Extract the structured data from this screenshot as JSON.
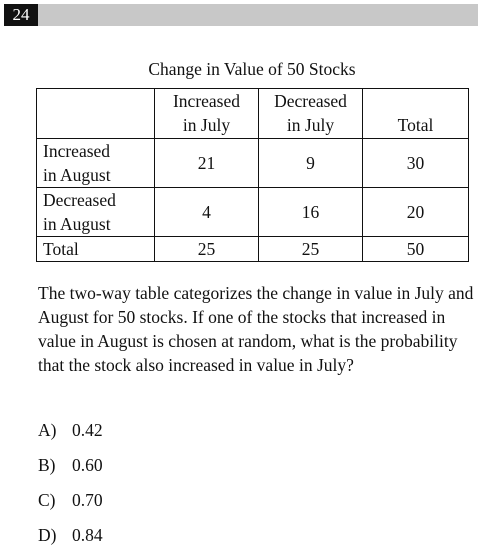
{
  "question": {
    "number": "24",
    "table_title": "Change in Value of 50 Stocks",
    "table": {
      "column_headers": [
        [
          "Increased",
          "in July"
        ],
        [
          "Decreased",
          "in July"
        ],
        [
          "",
          "Total"
        ]
      ],
      "rows": [
        {
          "label": [
            "Increased",
            "in August"
          ],
          "cells": [
            "21",
            "9",
            "30"
          ]
        },
        {
          "label": [
            "Decreased",
            "in August"
          ],
          "cells": [
            "4",
            "16",
            "20"
          ]
        },
        {
          "label": [
            "Total"
          ],
          "cells": [
            "25",
            "25",
            "50"
          ]
        }
      ]
    },
    "prompt": "The two-way table categorizes the change in value in July and August for 50 stocks. If one of the stocks that increased in value in August is chosen at random, what is the probability that the stock also increased in value in July?",
    "choices": [
      {
        "letter": "A)",
        "text": "0.42"
      },
      {
        "letter": "B)",
        "text": "0.60"
      },
      {
        "letter": "C)",
        "text": "0.70"
      },
      {
        "letter": "D)",
        "text": "0.84"
      }
    ]
  }
}
